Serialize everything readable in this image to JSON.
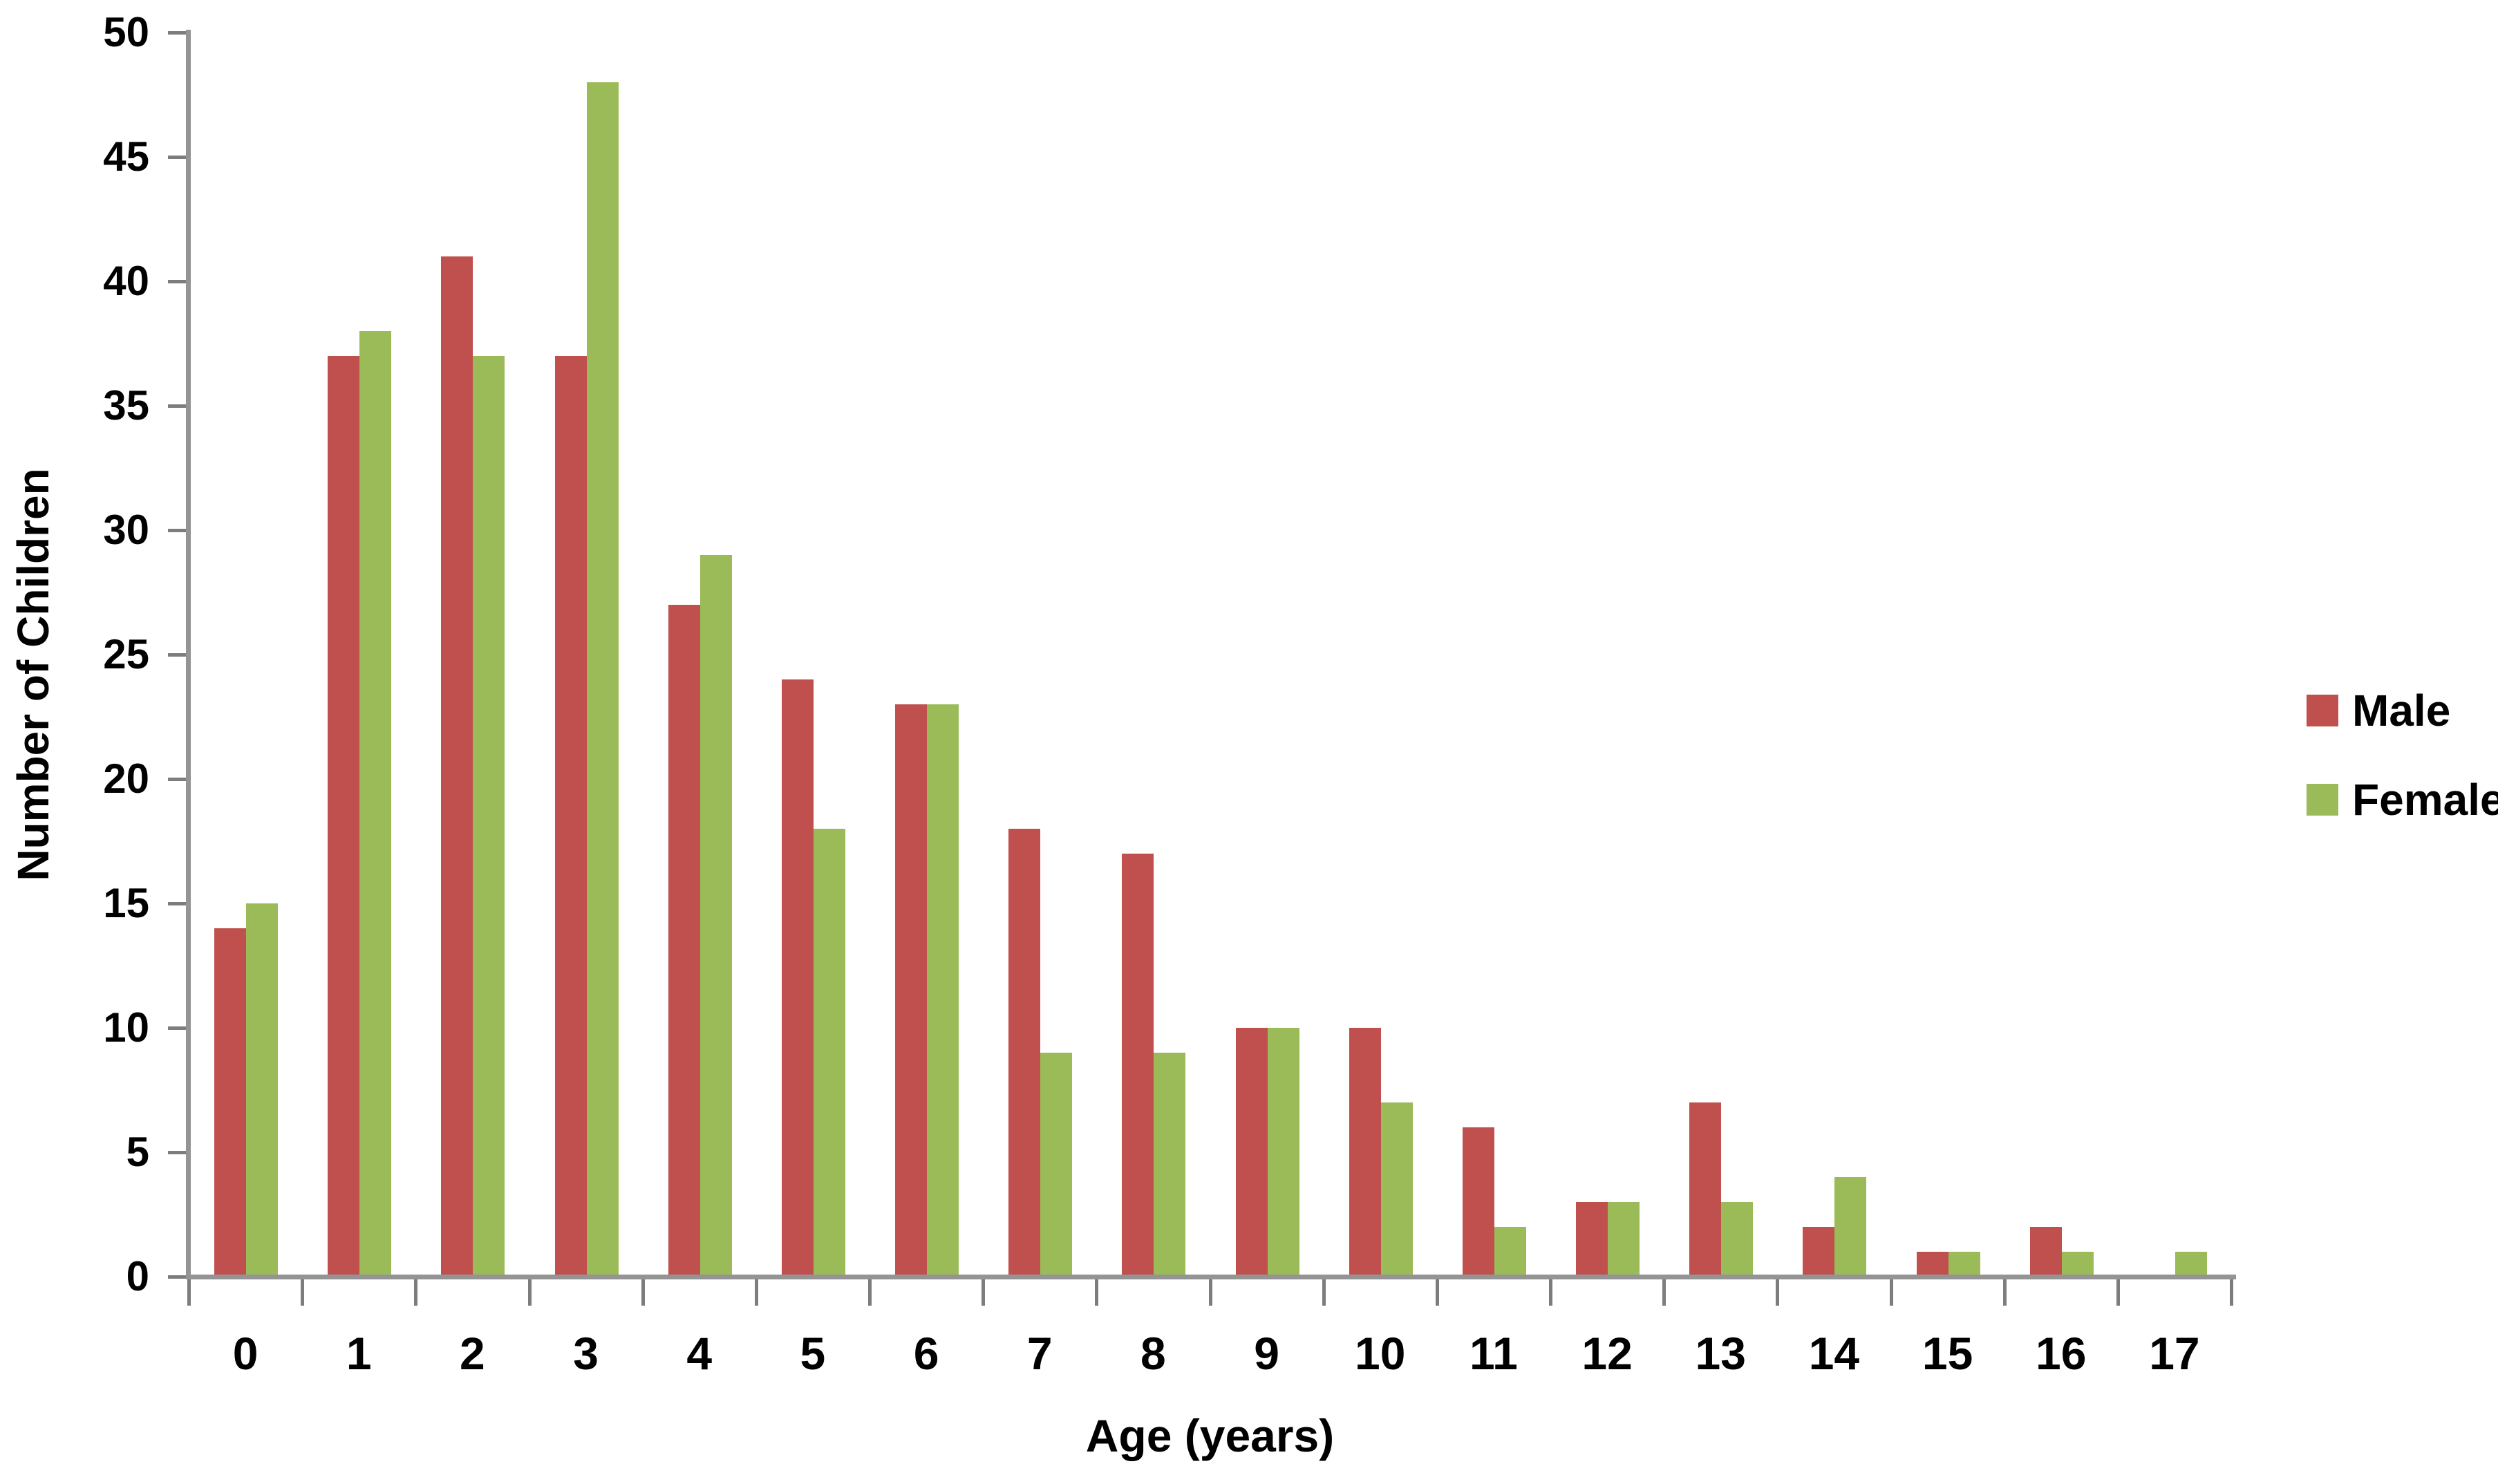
{
  "chart_data": {
    "type": "bar",
    "title": "",
    "xlabel": "Age (years)",
    "ylabel": "Number of Children",
    "categories": [
      "0",
      "1",
      "2",
      "3",
      "4",
      "5",
      "6",
      "7",
      "8",
      "9",
      "10",
      "11",
      "12",
      "13",
      "14",
      "15",
      "16",
      "17"
    ],
    "series": [
      {
        "name": "Male",
        "color": "#c0504d",
        "values": [
          14,
          37,
          41,
          37,
          27,
          24,
          23,
          18,
          17,
          10,
          10,
          6,
          3,
          7,
          2,
          1,
          2,
          0
        ]
      },
      {
        "name": "Female",
        "color": "#9bbb59",
        "values": [
          15,
          38,
          37,
          48,
          29,
          18,
          23,
          9,
          9,
          10,
          7,
          2,
          3,
          3,
          4,
          1,
          1,
          1
        ]
      }
    ],
    "ylim": [
      0,
      50
    ],
    "ytick_step": 5,
    "y_tick_labels": [
      "0",
      "5",
      "10",
      "15",
      "20",
      "25",
      "30",
      "35",
      "40",
      "45",
      "50"
    ],
    "grid": false,
    "legend_position": "right",
    "bar_gap_between_series": 0
  },
  "style_colors": {
    "axis_line": "#949494",
    "tick_mark": "#7d7d7d",
    "label_text": "#000000",
    "background": "#ffffff"
  }
}
